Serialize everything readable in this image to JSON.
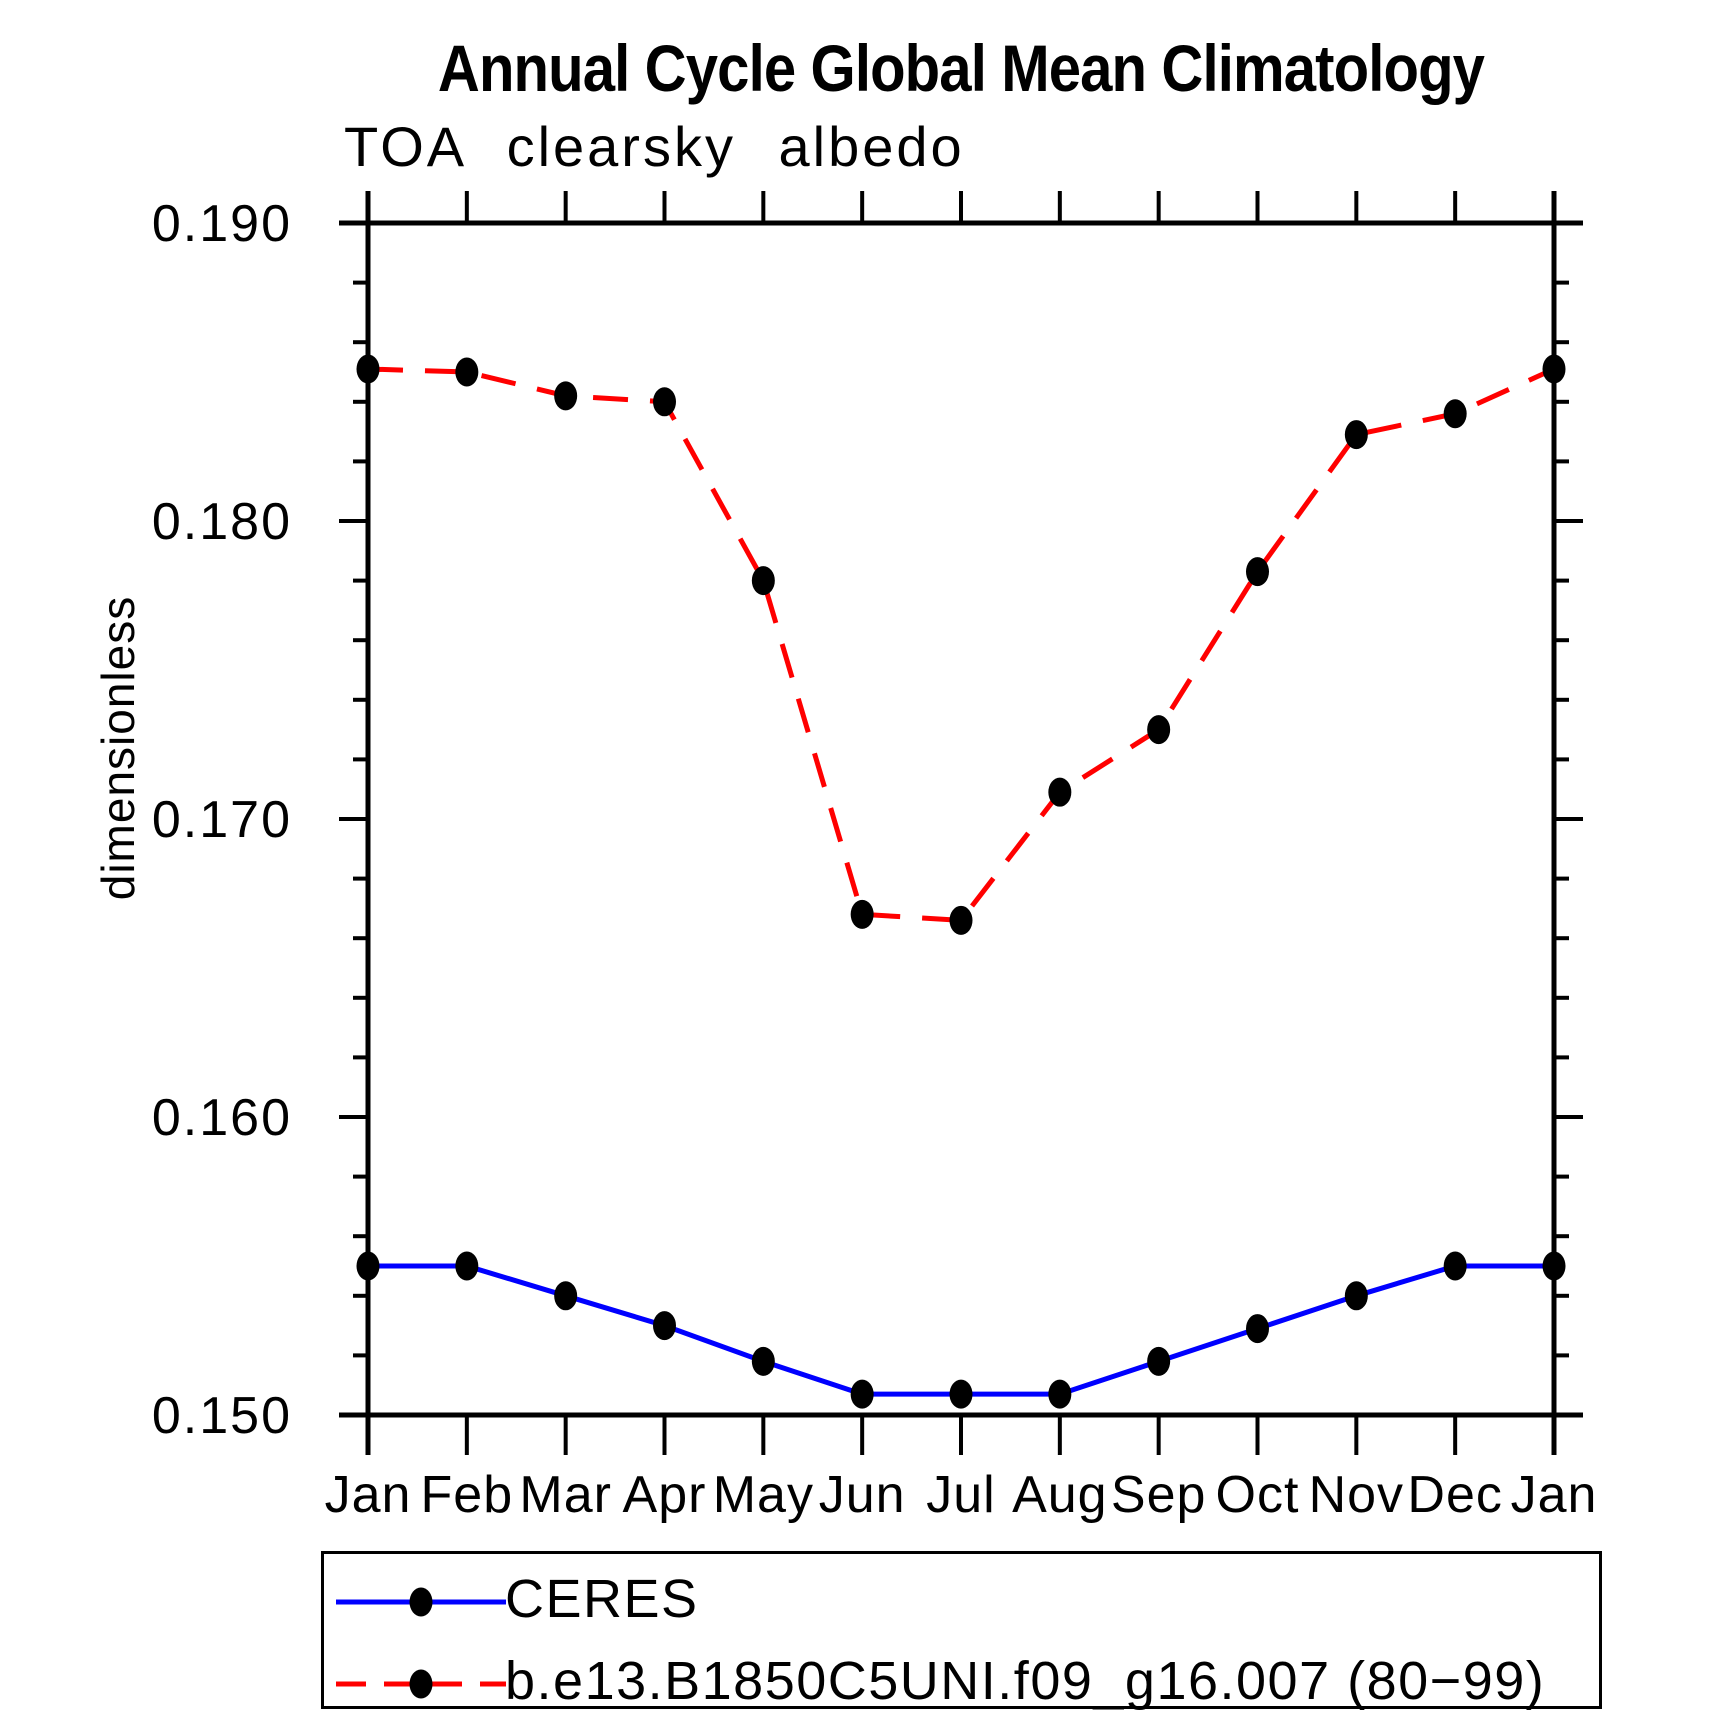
{
  "chart_data": {
    "type": "line",
    "title": "Annual Cycle Global Mean Climatology",
    "subtitle": "TOA clearsky albedo",
    "ylabel": "dimensionless",
    "xlabel": "",
    "x_ticklabels": [
      "Jan",
      "Feb",
      "Mar",
      "Apr",
      "May",
      "Jun",
      "Jul",
      "Aug",
      "Sep",
      "Oct",
      "Nov",
      "Dec",
      "Jan"
    ],
    "y_ticklabels": [
      "0.150",
      "0.160",
      "0.170",
      "0.180",
      "0.190"
    ],
    "y_major_ticks": [
      0.15,
      0.16,
      0.17,
      0.18,
      0.19
    ],
    "y_minor_step": 0.002,
    "ylim": [
      0.15,
      0.19
    ],
    "grid": false,
    "legend_position": "bottom-left",
    "marker": {
      "shape": "ellipse",
      "color": "#000000"
    },
    "axis_color": "#000000",
    "series": [
      {
        "name": "CERES",
        "color": "#0000ff",
        "line_style": "solid",
        "values": [
          0.155,
          0.155,
          0.154,
          0.153,
          0.1518,
          0.1507,
          0.1507,
          0.1507,
          0.1518,
          0.1529,
          0.154,
          0.155,
          0.155
        ]
      },
      {
        "name": "b.e13.B1850C5UNI.f09_g16.007 (80−99)",
        "color": "#ff0000",
        "line_style": "dashed",
        "values": [
          0.1851,
          0.185,
          0.1842,
          0.184,
          0.178,
          0.1668,
          0.1666,
          0.1709,
          0.173,
          0.1783,
          0.1829,
          0.1836,
          0.1851
        ]
      }
    ]
  }
}
